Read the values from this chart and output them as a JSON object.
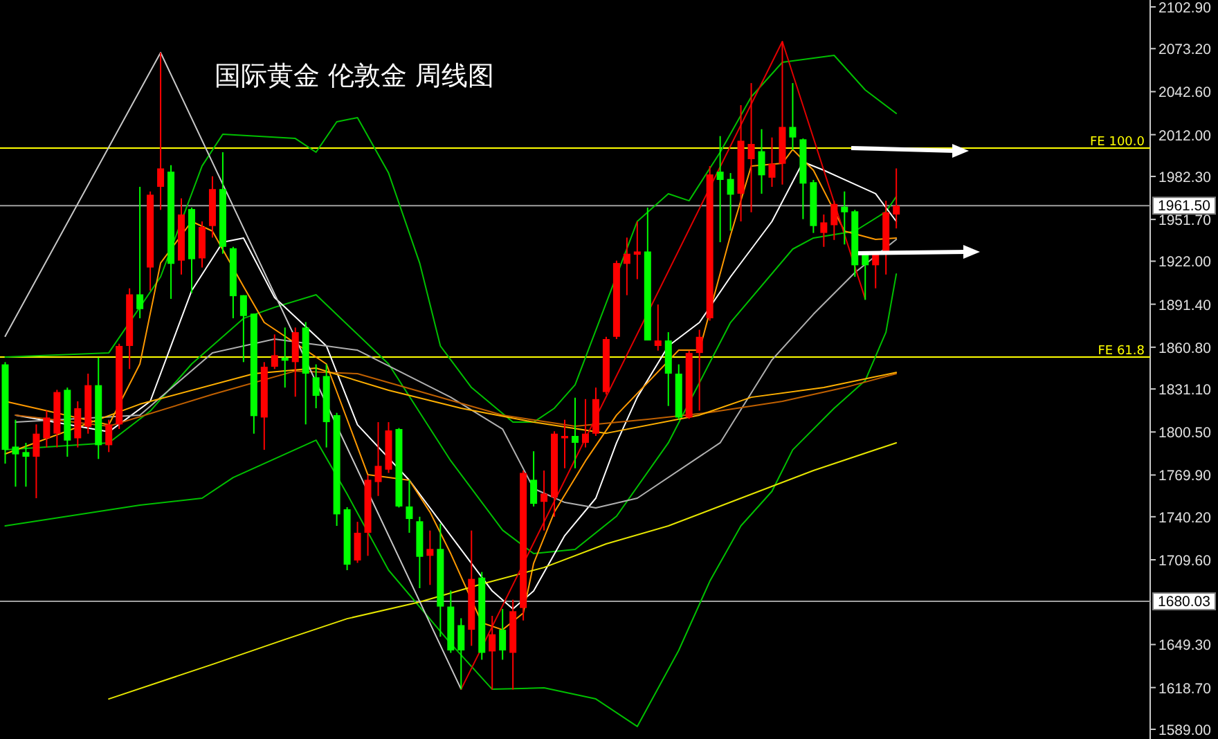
{
  "chart_data": {
    "type": "candlestick",
    "title": "国际黄金 伦敦金 周线图",
    "tick_labels": "y",
    "categories": [
      null,
      null,
      null,
      null,
      null,
      null,
      null,
      null,
      null,
      null,
      null,
      null,
      null,
      null,
      null,
      null,
      null,
      null,
      null,
      null,
      null,
      null,
      null,
      null,
      null,
      null,
      null,
      null,
      null,
      null,
      null,
      null,
      null,
      null,
      null,
      null,
      null,
      null,
      null,
      null,
      null,
      null,
      null,
      null,
      null,
      null,
      null,
      null,
      null,
      null,
      null,
      null,
      null,
      null,
      null,
      null,
      null,
      null,
      null,
      null,
      null,
      null,
      null,
      null,
      null,
      null,
      null,
      null,
      null,
      null,
      null,
      null,
      null,
      null,
      null,
      null,
      null,
      null,
      null,
      null,
      null,
      null,
      null,
      null,
      null,
      null,
      null,
      null,
      null,
      null,
      null,
      null,
      null,
      null,
      null,
      null,
      null,
      null,
      null,
      null,
      null,
      null,
      null,
      null,
      null,
      null,
      null,
      null,
      null,
      null,
      null
    ],
    "ohlc": [
      [
        1848.6,
        1850.2,
        1778.0,
        1787.8
      ],
      [
        1790.1,
        1809.2,
        1761.6,
        1784.6
      ],
      [
        1786.2,
        1792.8,
        1761.6,
        1782.9
      ],
      [
        1782.9,
        1805.9,
        1753.4,
        1799.3
      ],
      [
        1796.0,
        1815.7,
        1789.5,
        1810.8
      ],
      [
        1799.3,
        1830.5,
        1789.5,
        1828.9
      ],
      [
        1830.5,
        1832.1,
        1782.9,
        1794.4
      ],
      [
        1796.0,
        1822.3,
        1789.5,
        1817.4
      ],
      [
        1804.2,
        1842.0,
        1799.3,
        1833.8
      ],
      [
        1833.8,
        1853.5,
        1781.3,
        1791.1
      ],
      [
        1791.1,
        1809.2,
        1786.2,
        1805.9
      ],
      [
        1805.9,
        1863.3,
        1802.6,
        1861.7
      ],
      [
        1861.7,
        1902.7,
        1845.3,
        1898.4
      ],
      [
        1898.4,
        1974.9,
        1881.4,
        1887.9
      ],
      [
        1917.5,
        1971.6,
        1901.1,
        1969.3
      ],
      [
        1974.9,
        2070.4,
        1958.5,
        1988.0
      ],
      [
        1985.7,
        1990.3,
        1895.2,
        1920.1
      ],
      [
        1922.4,
        1966.7,
        1912.5,
        1955.2
      ],
      [
        1959.1,
        1960.1,
        1899.4,
        1923.4
      ],
      [
        1924.0,
        1950.3,
        1917.5,
        1946.3
      ],
      [
        1947.0,
        1982.4,
        1938.8,
        1973.3
      ],
      [
        1973.3,
        1999.5,
        1927.3,
        1932.2
      ],
      [
        1931.2,
        1932.2,
        1881.4,
        1897.1
      ],
      [
        1897.8,
        1897.8,
        1850.2,
        1883.0
      ],
      [
        1884.7,
        1884.7,
        1799.3,
        1811.8
      ],
      [
        1810.8,
        1850.2,
        1787.8,
        1846.9
      ],
      [
        1846.9,
        1869.9,
        1845.3,
        1855.1
      ],
      [
        1853.5,
        1874.8,
        1832.1,
        1851.2
      ],
      [
        1850.2,
        1874.8,
        1825.6,
        1871.5
      ],
      [
        1874.8,
        1878.7,
        1805.9,
        1842.0
      ],
      [
        1839.4,
        1848.6,
        1817.4,
        1826.2
      ],
      [
        1840.3,
        1848.6,
        1789.5,
        1807.5
      ],
      [
        1812.5,
        1814.1,
        1733.7,
        1741.9
      ],
      [
        1745.5,
        1747.0,
        1702.2,
        1706.1
      ],
      [
        1709.1,
        1736.6,
        1707.4,
        1728.8
      ],
      [
        1728.8,
        1769.8,
        1712.4,
        1766.5
      ],
      [
        1764.9,
        1807.5,
        1755.0,
        1776.4
      ],
      [
        1773.7,
        1807.5,
        1771.4,
        1801.6
      ],
      [
        1802.6,
        1803.3,
        1746.8,
        1747.5
      ],
      [
        1747.5,
        1766.5,
        1728.8,
        1738.6
      ],
      [
        1737.0,
        1740.2,
        1689.4,
        1711.7
      ],
      [
        1712.4,
        1730.4,
        1691.7,
        1717.3
      ],
      [
        1717.3,
        1735.3,
        1654.9,
        1676.3
      ],
      [
        1676.3,
        1687.7,
        1643.4,
        1645.1
      ],
      [
        1663.1,
        1668.0,
        1617.5,
        1645.1
      ],
      [
        1659.8,
        1730.4,
        1648.4,
        1696.0
      ],
      [
        1696.9,
        1700.9,
        1638.5,
        1643.4
      ],
      [
        1644.4,
        1669.7,
        1617.2,
        1656.6
      ],
      [
        1659.8,
        1674.6,
        1638.5,
        1645.1
      ],
      [
        1643.4,
        1681.2,
        1617.2,
        1673.0
      ],
      [
        1675.3,
        1773.1,
        1666.4,
        1771.4
      ],
      [
        1766.5,
        1786.8,
        1747.5,
        1749.4
      ],
      [
        1750.8,
        1773.1,
        1730.4,
        1756.7
      ],
      [
        1754.0,
        1801.0,
        1740.2,
        1799.3
      ],
      [
        1796.0,
        1809.2,
        1774.7,
        1797.7
      ],
      [
        1797.7,
        1824.9,
        1774.7,
        1792.8
      ],
      [
        1792.8,
        1823.9,
        1789.5,
        1799.3
      ],
      [
        1799.3,
        1832.1,
        1797.7,
        1823.9
      ],
      [
        1828.9,
        1868.2,
        1827.2,
        1866.6
      ],
      [
        1868.2,
        1922.4,
        1866.6,
        1920.7
      ],
      [
        1920.1,
        1938.8,
        1897.8,
        1927.3
      ],
      [
        1926.6,
        1950.3,
        1909.2,
        1928.9
      ],
      [
        1928.9,
        1960.1,
        1865.6,
        1865.6
      ],
      [
        1861.7,
        1891.2,
        1858.4,
        1865.6
      ],
      [
        1865.6,
        1871.5,
        1819.0,
        1842.0
      ],
      [
        1842.0,
        1848.6,
        1809.2,
        1810.8
      ],
      [
        1810.8,
        1858.4,
        1809.8,
        1856.7
      ],
      [
        1856.7,
        1873.2,
        1815.7,
        1868.2
      ],
      [
        1881.4,
        1989.6,
        1879.7,
        1983.7
      ],
      [
        1985.7,
        2011.0,
        1935.5,
        1979.8
      ],
      [
        1980.5,
        1984.7,
        1943.7,
        1969.3
      ],
      [
        1970.0,
        2033.0,
        1950.3,
        2007.7
      ],
      [
        1994.6,
        2048.7,
        1956.8,
        2005.4
      ],
      [
        2000.2,
        2015.9,
        1970.0,
        1983.1
      ],
      [
        1981.4,
        2010.0,
        1974.9,
        1991.3
      ],
      [
        1991.3,
        2078.3,
        1976.5,
        2017.5
      ],
      [
        2017.5,
        2048.7,
        2001.1,
        2010.0
      ],
      [
        2008.7,
        2009.3,
        1951.9,
        1977.2
      ],
      [
        1978.2,
        1979.8,
        1942.1,
        1947.0
      ],
      [
        1942.1,
        1955.2,
        1932.2,
        1949.6
      ],
      [
        1947.6,
        1965.0,
        1937.1,
        1962.7
      ],
      [
        1960.8,
        1971.6,
        1933.9,
        1956.8
      ],
      [
        1957.5,
        1958.5,
        1910.9,
        1919.1
      ],
      [
        1927.3,
        1928.9,
        1894.5,
        1919.1
      ],
      [
        1919.1,
        1928.9,
        1902.7,
        1927.3
      ],
      [
        1927.3,
        1965.0,
        1912.5,
        1956.8
      ],
      [
        1955.2,
        1988.0,
        1945.3,
        1961.5
      ],
      null,
      null,
      null,
      null,
      null,
      null,
      null,
      null,
      null,
      null,
      null,
      null,
      null,
      null,
      null,
      null,
      null,
      null,
      null,
      null,
      null,
      null,
      null,
      null
    ],
    "colors": [
      "#00ff00",
      "#00ff00",
      "#00ff00",
      "#ff0000",
      "#ff0000",
      "#ff0000",
      "#00ff00",
      "#ff0000",
      "#ff0000",
      "#00ff00",
      "#ff0000",
      "#ff0000",
      "#ff0000",
      "#00ff00",
      "#ff0000",
      "#ff0000",
      "#00ff00",
      "#ff0000",
      "#00ff00",
      "#ff0000",
      "#ff0000",
      "#00ff00",
      "#00ff00",
      "#00ff00",
      "#00ff00",
      "#ff0000",
      "#ff0000",
      "#00ff00",
      "#ff0000",
      "#00ff00",
      "#00ff00",
      "#00ff00",
      "#00ff00",
      "#00ff00",
      "#ff0000",
      "#ff0000",
      "#ff0000",
      "#ff0000",
      "#00ff00",
      "#00ff00",
      "#00ff00",
      "#ff0000",
      "#00ff00",
      "#00ff00",
      "#00ff00",
      "#ff0000",
      "#00ff00",
      "#ff0000",
      "#00ff00",
      "#ff0000",
      "#ff0000",
      "#00ff00",
      "#ff0000",
      "#ff0000",
      "#ff0000",
      "#00ff00",
      "#ff0000",
      "#ff0000",
      "#ff0000",
      "#ff0000",
      "#ff0000",
      "#ff0000",
      "#00ff00",
      "#ff0000",
      "#00ff00",
      "#00ff00",
      "#ff0000",
      "#ff0000",
      "#ff0000",
      "#00ff00",
      "#00ff00",
      "#ff0000",
      "#ff0000",
      "#00ff00",
      "#ff0000",
      "#ff0000",
      "#00ff00",
      "#00ff00",
      "#00ff00",
      "#ff0000",
      "#ff0000",
      "#00ff00",
      "#00ff00",
      "#00ff00",
      "#ff0000",
      "#ff0000",
      "#ff0000",
      null,
      null,
      null,
      null,
      null,
      null,
      null,
      null,
      null,
      null,
      null,
      null,
      null,
      null,
      null,
      null,
      null,
      null,
      null,
      null,
      null,
      null,
      null,
      null
    ],
    "ylim": [
      1582.1,
      2107.8
    ],
    "yticks": [
      {
        "value": 2102.9,
        "label": "2102.90"
      },
      {
        "value": 2073.2,
        "label": "2073.20"
      },
      {
        "value": 2042.6,
        "label": "2042.60"
      },
      {
        "value": 2012.0,
        "label": "2012.00"
      },
      {
        "value": 1982.3,
        "label": "1982.30"
      },
      {
        "value": 1951.7,
        "label": "1951.70"
      },
      {
        "value": 1922.0,
        "label": "1922.00"
      },
      {
        "value": 1891.4,
        "label": "1891.40"
      },
      {
        "value": 1860.8,
        "label": "1860.80"
      },
      {
        "value": 1831.1,
        "label": "1831.10"
      },
      {
        "value": 1800.5,
        "label": "1800.50"
      },
      {
        "value": 1769.9,
        "label": "1769.90"
      },
      {
        "value": 1740.2,
        "label": "1740.20"
      },
      {
        "value": 1709.6,
        "label": "1709.60"
      },
      {
        "value": 1649.3,
        "label": "1649.30"
      },
      {
        "value": 1618.7,
        "label": "1618.70"
      },
      {
        "value": 1589.0,
        "label": "1589.00"
      }
    ],
    "ref_lines": [
      {
        "axis": "y",
        "value": 2002.5,
        "label": "FE 100.0",
        "color": "#ffff00"
      },
      {
        "axis": "y",
        "value": 1853.8,
        "label": "FE 61.8",
        "color": "#ffff00"
      },
      {
        "axis": "y",
        "value": 1961.5,
        "label": "1961.50",
        "color": "#a0a0a0"
      },
      {
        "axis": "y",
        "value": 1680.03,
        "label": "1680.03",
        "color": "#a0a0a0"
      }
    ],
    "series": [
      {
        "type": "line",
        "color": "#00c000",
        "values": [
          1853.8,
          null,
          null,
          null,
          null,
          null,
          null,
          null,
          null,
          null,
          1856.8,
          null,
          null,
          null,
          null,
          1910.9,
          null,
          null,
          null,
          1989.7,
          null,
          2012.3,
          null,
          null,
          null,
          null,
          null,
          null,
          2009.3,
          null,
          1999.5,
          null,
          2021.2,
          null,
          2024.1,
          null,
          null,
          1984.7,
          null,
          null,
          1920.7,
          null,
          1861.7,
          null,
          null,
          1832.1,
          null,
          null,
          null,
          1807.5,
          null,
          1807.5,
          null,
          1817.4,
          null,
          1834.1,
          null,
          null,
          null,
          null,
          null,
          1950.3,
          null,
          null,
          1970.0,
          null,
          1965.0,
          null,
          null,
          1999.5,
          null,
          null,
          2038.9,
          null,
          null,
          2063.5,
          null,
          null,
          null,
          null,
          2068.4,
          null,
          null,
          2043.8,
          null,
          null,
          2027.1,
          null,
          null,
          null,
          null,
          null,
          null,
          null,
          null,
          null,
          null,
          null,
          null,
          null,
          null,
          null,
          null,
          null,
          null,
          null,
          null,
          null,
          null,
          null,
          null
        ]
      },
      {
        "type": "line",
        "color": "#00c000",
        "values": [
          1787.8,
          null,
          null,
          null,
          null,
          null,
          null,
          null,
          null,
          null,
          1792.8,
          null,
          null,
          null,
          1815.4,
          null,
          null,
          null,
          1848.9,
          null,
          null,
          null,
          null,
          1881.3,
          null,
          null,
          1889.2,
          null,
          null,
          null,
          1898.1,
          null,
          null,
          null,
          null,
          null,
          null,
          1848.9,
          null,
          null,
          null,
          null,
          null,
          1780.0,
          null,
          null,
          null,
          null,
          1730.7,
          null,
          null,
          1714.0,
          null,
          null,
          null,
          1717.0,
          null,
          null,
          null,
          1740.6,
          null,
          null,
          null,
          null,
          1792.8,
          null,
          null,
          null,
          null,
          null,
          1878.4,
          null,
          null,
          null,
          null,
          null,
          1930.6,
          null,
          1938.5,
          null,
          null,
          null,
          1943.4,
          null,
          null,
          1957.2,
          1968.0,
          null,
          null,
          null,
          null,
          null,
          null,
          null,
          null,
          null,
          null,
          null,
          null,
          null,
          null,
          null,
          null,
          null,
          null,
          null,
          null,
          null,
          null,
          null,
          null
        ]
      },
      {
        "type": "line",
        "color": "#00c000",
        "values": [
          1733.7,
          null,
          null,
          null,
          null,
          null,
          null,
          null,
          null,
          null,
          null,
          null,
          null,
          1748.5,
          null,
          null,
          null,
          null,
          null,
          1753.4,
          null,
          null,
          1768.1,
          null,
          null,
          null,
          null,
          null,
          null,
          null,
          1794.7,
          null,
          null,
          1756.3,
          null,
          null,
          null,
          1702.2,
          null,
          null,
          null,
          null,
          null,
          1650.0,
          null,
          null,
          null,
          1617.5,
          null,
          null,
          null,
          null,
          1618.5,
          null,
          null,
          null,
          null,
          1610.6,
          null,
          null,
          null,
          1591.0,
          null,
          null,
          null,
          1645.1,
          null,
          null,
          1694.3,
          null,
          null,
          1733.7,
          null,
          null,
          1758.3,
          null,
          1787.8,
          null,
          null,
          null,
          1817.4,
          null,
          null,
          1837.1,
          null,
          1871.5,
          1912.9,
          null,
          null,
          null,
          null,
          null,
          null,
          null,
          null,
          null,
          null,
          null,
          null,
          null,
          null,
          null,
          null,
          null,
          null,
          null,
          null,
          null,
          null,
          null,
          null
        ]
      },
      {
        "type": "line",
        "color": "#ffffff",
        "values": [
          null,
          1812.5,
          null,
          null,
          null,
          null,
          null,
          null,
          null,
          null,
          1800.6,
          null,
          null,
          null,
          1822.3,
          null,
          null,
          null,
          1901.1,
          null,
          null,
          1935.5,
          null,
          1938.5,
          null,
          null,
          1896.1,
          null,
          null,
          null,
          null,
          1861.7,
          null,
          null,
          1805.6,
          null,
          null,
          null,
          null,
          1766.2,
          null,
          null,
          null,
          1726.8,
          null,
          null,
          null,
          1687.4,
          null,
          1674.6,
          null,
          1687.4,
          null,
          null,
          1726.8,
          null,
          null,
          1753.4,
          null,
          1792.8,
          null,
          1825.2,
          null,
          null,
          1861.7,
          null,
          null,
          1878.4,
          null,
          null,
          1910.9,
          null,
          null,
          null,
          1950.3,
          null,
          null,
          1992.6,
          null,
          1986.7,
          null,
          null,
          null,
          null,
          1970.0,
          null,
          1950.3,
          null,
          null,
          null,
          null,
          null,
          null,
          null,
          null,
          null,
          null,
          null,
          null,
          null,
          null,
          null,
          null,
          null,
          null,
          null,
          null,
          null,
          null,
          null,
          null
        ]
      },
      {
        "type": "line",
        "color": "#b0b0b0",
        "values": [
          null,
          1807.5,
          null,
          null,
          null,
          null,
          null,
          null,
          null,
          null,
          null,
          null,
          null,
          1812.5,
          null,
          null,
          null,
          null,
          null,
          null,
          1856.8,
          null,
          null,
          null,
          null,
          null,
          1866.6,
          null,
          null,
          null,
          null,
          1861.7,
          null,
          null,
          1858.7,
          null,
          null,
          null,
          null,
          null,
          null,
          null,
          null,
          1825.2,
          null,
          null,
          null,
          null,
          1802.6,
          null,
          null,
          1760.3,
          null,
          null,
          1750.4,
          null,
          null,
          1746.5,
          null,
          null,
          null,
          1753.4,
          null,
          null,
          null,
          null,
          null,
          null,
          null,
          1792.8,
          null,
          null,
          null,
          null,
          1851.8,
          null,
          null,
          null,
          1884.3,
          null,
          null,
          null,
          1913.9,
          null,
          null,
          null,
          1937.5,
          null,
          null,
          null,
          null,
          null,
          null,
          null,
          null,
          null,
          null,
          null,
          null,
          null,
          null,
          null,
          null,
          null,
          null,
          null,
          null,
          null,
          null,
          null,
          null
        ]
      },
      {
        "type": "line",
        "color": "#ff9900",
        "values": [
          1822.3,
          null,
          null,
          null,
          null,
          null,
          null,
          null,
          null,
          null,
          1805.6,
          null,
          null,
          1848.9,
          null,
          1920.7,
          null,
          null,
          1950.3,
          null,
          1943.4,
          null,
          null,
          1904.0,
          null,
          1878.4,
          null,
          null,
          null,
          null,
          null,
          1848.9,
          null,
          null,
          null,
          1770.1,
          null,
          null,
          null,
          1766.2,
          null,
          1743.5,
          null,
          1714.0,
          null,
          null,
          1664.8,
          null,
          1659.8,
          null,
          1671.7,
          1707.1,
          null,
          1743.5,
          null,
          null,
          1779.9,
          null,
          null,
          1812.5,
          null,
          null,
          null,
          null,
          null,
          1858.7,
          null,
          1858.7,
          null,
          null,
          1940.4,
          null,
          1989.7,
          null,
          null,
          1991.6,
          2001.5,
          null,
          1986.7,
          null,
          null,
          1943.4,
          null,
          null,
          1937.5,
          null,
          1938.5,
          null,
          null,
          null,
          null,
          null,
          null,
          null,
          null,
          null,
          null,
          null,
          null,
          null,
          null,
          null,
          null,
          null,
          null,
          null,
          null,
          null,
          null,
          null,
          null
        ]
      },
      {
        "type": "line",
        "color": "#c06000",
        "values": [
          null,
          1812.5,
          null,
          null,
          null,
          null,
          null,
          null,
          null,
          null,
          1804.6,
          null,
          null,
          null,
          null,
          null,
          null,
          null,
          null,
          null,
          1827.2,
          null,
          null,
          null,
          null,
          null,
          null,
          null,
          1843.9,
          null,
          null,
          null,
          null,
          null,
          1842.0,
          null,
          null,
          null,
          null,
          null,
          null,
          1827.2,
          null,
          null,
          null,
          null,
          null,
          null,
          1812.5,
          null,
          null,
          null,
          null,
          null,
          null,
          1804.6,
          null,
          null,
          null,
          null,
          null,
          null,
          1809.5,
          null,
          null,
          null,
          null,
          null,
          1814.4,
          null,
          null,
          null,
          null,
          null,
          null,
          1822.3,
          null,
          null,
          null,
          null,
          null,
          1832.1,
          null,
          null,
          null,
          null,
          1842.0,
          null,
          null,
          null,
          null,
          null,
          null,
          null,
          null,
          null,
          null,
          null,
          null,
          null,
          null,
          null,
          null,
          null,
          null,
          null,
          null,
          null,
          null,
          null,
          null
        ]
      },
      {
        "type": "line",
        "color": "#ffb000",
        "values": [
          1784.9,
          null,
          null,
          null,
          null,
          null,
          null,
          null,
          null,
          null,
          null,
          null,
          null,
          1820.3,
          null,
          null,
          null,
          null,
          null,
          null,
          null,
          null,
          null,
          null,
          1842.0,
          null,
          null,
          null,
          null,
          null,
          1845.9,
          null,
          null,
          null,
          null,
          null,
          null,
          1830.2,
          null,
          null,
          null,
          null,
          null,
          null,
          1817.4,
          null,
          null,
          null,
          null,
          null,
          null,
          1807.5,
          null,
          null,
          null,
          null,
          null,
          null,
          1799.6,
          null,
          null,
          null,
          null,
          null,
          null,
          null,
          null,
          1812.5,
          null,
          null,
          null,
          null,
          1825.2,
          null,
          null,
          null,
          null,
          null,
          null,
          1832.1,
          null,
          null,
          null,
          null,
          null,
          null,
          1842.9,
          null,
          null,
          null,
          null,
          null,
          null,
          null,
          null,
          null,
          null,
          null,
          null,
          null,
          null,
          null,
          null,
          null,
          null,
          null,
          null,
          null,
          null,
          null,
          null
        ]
      },
      {
        "type": "line",
        "color": "#e6e600",
        "values": [
          null,
          null,
          null,
          null,
          null,
          null,
          null,
          null,
          null,
          null,
          1610.6,
          null,
          null,
          null,
          null,
          null,
          null,
          null,
          null,
          null,
          1635.2,
          null,
          null,
          null,
          null,
          null,
          null,
          1652.9,
          null,
          null,
          null,
          null,
          null,
          1667.7,
          null,
          null,
          null,
          null,
          null,
          null,
          1679.6,
          null,
          null,
          null,
          null,
          null,
          1692.4,
          null,
          null,
          null,
          null,
          null,
          1704.1,
          null,
          null,
          null,
          null,
          null,
          1720.9,
          null,
          null,
          null,
          null,
          null,
          1733.7,
          null,
          null,
          null,
          null,
          null,
          null,
          1753.4,
          null,
          null,
          null,
          null,
          null,
          null,
          1773.1,
          null,
          null,
          null,
          null,
          null,
          null,
          null,
          1792.8,
          null,
          null,
          null,
          null,
          null,
          null,
          null,
          null,
          null,
          null,
          null,
          null,
          null,
          null,
          null,
          null,
          null,
          null,
          null,
          null,
          null,
          null,
          null,
          null
        ]
      },
      {
        "type": "line",
        "color": "#c8c8c8",
        "values": [
          1868.6,
          null,
          null,
          null,
          null,
          null,
          null,
          null,
          null,
          null,
          null,
          null,
          null,
          null,
          null,
          2070.4,
          null,
          null,
          null,
          null,
          null,
          null,
          null,
          null,
          null,
          null,
          null,
          null,
          null,
          null,
          null,
          null,
          null,
          null,
          null,
          null,
          null,
          null,
          null,
          null,
          null,
          null,
          null,
          null,
          1617.5,
          null,
          null,
          null,
          null,
          null,
          null,
          null,
          null,
          null,
          null,
          null,
          null,
          null,
          null,
          null,
          null,
          null,
          null,
          null,
          null,
          null,
          null,
          null,
          null,
          null,
          null,
          null,
          null,
          null,
          null,
          null,
          null,
          null,
          null,
          null,
          null,
          null,
          null,
          null,
          null,
          null,
          null,
          null,
          null,
          null,
          null,
          null,
          null,
          null,
          null,
          null,
          null,
          null,
          null,
          null,
          null,
          null,
          null,
          null,
          null,
          null,
          null,
          null,
          null,
          null,
          null
        ]
      },
      {
        "type": "line",
        "color": "#e00000",
        "values": [
          null,
          null,
          null,
          null,
          null,
          null,
          null,
          null,
          null,
          null,
          null,
          null,
          null,
          null,
          null,
          null,
          null,
          null,
          null,
          null,
          null,
          null,
          null,
          null,
          null,
          null,
          null,
          null,
          null,
          null,
          null,
          null,
          null,
          null,
          null,
          null,
          null,
          null,
          null,
          null,
          null,
          null,
          null,
          null,
          1617.5,
          null,
          null,
          null,
          null,
          null,
          null,
          null,
          null,
          null,
          null,
          null,
          null,
          null,
          null,
          null,
          null,
          null,
          null,
          null,
          null,
          null,
          null,
          null,
          null,
          null,
          null,
          null,
          null,
          null,
          null,
          2078.3,
          null,
          null,
          null,
          null,
          null,
          null,
          null,
          1895.2,
          null,
          null,
          null,
          null,
          null,
          null,
          null,
          null,
          null,
          null,
          null,
          null,
          null,
          null,
          null,
          null,
          null,
          null,
          null,
          null,
          null,
          null,
          null,
          null,
          null,
          null,
          null
        ]
      }
    ]
  }
}
